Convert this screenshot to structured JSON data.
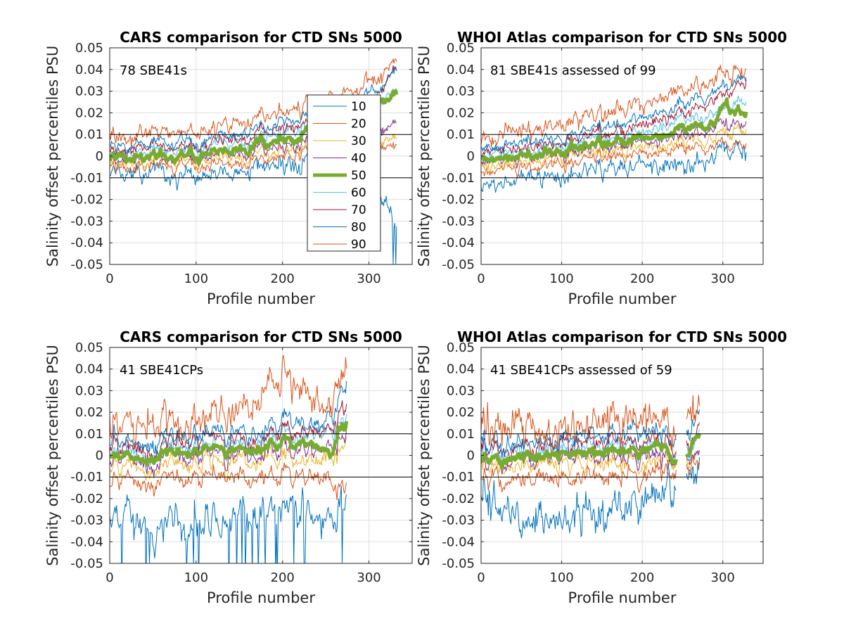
{
  "figure": {
    "colors": {
      "p10": "#0072BD",
      "p20": "#D95319",
      "p30": "#EDB120",
      "p40": "#7E2F8E",
      "p50": "#77AC30",
      "p60": "#4DBEEE",
      "p70": "#A2142F",
      "p80": "#0072BD",
      "p90": "#D95319"
    },
    "reference_lines": [
      0.01,
      -0.01
    ]
  },
  "chart_data": [
    {
      "type": "line",
      "title": "CARS comparison for CTD SNs 5000",
      "xlabel": "Profile number",
      "ylabel": "Salinity offset percentiles PSU",
      "xlim": [
        0,
        350
      ],
      "ylim": [
        -0.05,
        0.05
      ],
      "xticks": [
        "0",
        "100",
        "200",
        "300"
      ],
      "yticks": [
        "0.05",
        "0.04",
        "0.03",
        "0.02",
        "0.01",
        "0",
        "-0.01",
        "-0.02",
        "-0.03",
        "-0.04",
        "-0.05"
      ],
      "grid": true,
      "annotation": "78 SBE41s",
      "legend": {
        "location": "right",
        "entries": [
          "10",
          "20",
          "30",
          "40",
          "50",
          "60",
          "70",
          "80",
          "90"
        ]
      },
      "n_profiles": 333,
      "median_series": {
        "x": [
          0,
          25,
          50,
          75,
          100,
          125,
          150,
          175,
          200,
          225,
          245,
          260,
          280,
          300,
          310,
          320,
          330
        ],
        "y": [
          -0.0005,
          -0.001,
          -0.0008,
          -0.0005,
          0.001,
          0.002,
          0.004,
          0.006,
          0.008,
          0.0095,
          0.015,
          0.012,
          0.016,
          0.019,
          0.029,
          0.026,
          0.028
        ]
      },
      "series": [
        {
          "name": "10",
          "x": [
            0,
            100,
            200,
            260,
            300,
            330
          ],
          "y": [
            -0.009,
            -0.009,
            -0.004,
            -0.003,
            -0.004,
            -0.03
          ]
        },
        {
          "name": "20",
          "x": [
            0,
            100,
            200,
            260,
            300,
            330
          ],
          "y": [
            -0.006,
            -0.004,
            0.0,
            0.003,
            0.005,
            0.004
          ]
        },
        {
          "name": "30",
          "x": [
            0,
            100,
            200,
            260,
            300,
            330
          ],
          "y": [
            -0.004,
            -0.002,
            0.003,
            0.005,
            0.008,
            0.009
          ]
        },
        {
          "name": "40",
          "x": [
            0,
            100,
            200,
            260,
            300,
            330
          ],
          "y": [
            -0.002,
            0.0,
            0.005,
            0.008,
            0.012,
            0.014
          ]
        },
        {
          "name": "50",
          "x": [
            0,
            100,
            200,
            245,
            280,
            310,
            330
          ],
          "y": [
            -0.0005,
            0.001,
            0.008,
            0.015,
            0.016,
            0.029,
            0.028
          ]
        },
        {
          "name": "60",
          "x": [
            0,
            100,
            200,
            260,
            300,
            330
          ],
          "y": [
            0.0005,
            0.004,
            0.011,
            0.014,
            0.022,
            0.03
          ]
        },
        {
          "name": "70",
          "x": [
            0,
            100,
            200,
            260,
            300,
            330
          ],
          "y": [
            0.002,
            0.005,
            0.013,
            0.016,
            0.026,
            0.04
          ]
        },
        {
          "name": "80",
          "x": [
            0,
            100,
            200,
            260,
            300,
            330
          ],
          "y": [
            0.004,
            0.007,
            0.016,
            0.02,
            0.03,
            0.039
          ]
        },
        {
          "name": "90",
          "x": [
            0,
            100,
            200,
            260,
            300,
            330
          ],
          "y": [
            0.008,
            0.012,
            0.021,
            0.027,
            0.034,
            0.044
          ]
        }
      ]
    },
    {
      "type": "line",
      "title": "WHOI Atlas comparison for CTD SNs 5000",
      "xlabel": "Profile number",
      "ylabel": "Salinity offset percentiles PSU",
      "xlim": [
        0,
        350
      ],
      "ylim": [
        -0.05,
        0.05
      ],
      "xticks": [
        "0",
        "100",
        "200",
        "300"
      ],
      "yticks": [
        "0.05",
        "0.04",
        "0.03",
        "0.02",
        "0.01",
        "0",
        "-0.01",
        "-0.02",
        "-0.03",
        "-0.04",
        "-0.05"
      ],
      "grid": true,
      "annotation": "81 SBE41s assessed of 99",
      "n_profiles": 330,
      "median_series": {
        "x": [
          0,
          25,
          50,
          75,
          100,
          125,
          150,
          175,
          200,
          225,
          250,
          275,
          295,
          305,
          315,
          330
        ],
        "y": [
          -0.0005,
          -0.001,
          0.0,
          0.001,
          0.002,
          0.004,
          0.005,
          0.007,
          0.008,
          0.009,
          0.013,
          0.014,
          0.017,
          0.026,
          0.02,
          0.022
        ]
      },
      "series": [
        {
          "name": "10",
          "x": [
            0,
            100,
            200,
            250,
            300,
            330
          ],
          "y": [
            -0.012,
            -0.009,
            -0.004,
            -0.005,
            0.002,
            0.004
          ]
        },
        {
          "name": "20",
          "x": [
            0,
            100,
            200,
            250,
            300,
            330
          ],
          "y": [
            -0.007,
            -0.004,
            0.001,
            0.003,
            0.005,
            0.008
          ]
        },
        {
          "name": "30",
          "x": [
            0,
            100,
            200,
            250,
            300,
            330
          ],
          "y": [
            -0.004,
            -0.001,
            0.004,
            0.006,
            0.01,
            0.013
          ]
        },
        {
          "name": "40",
          "x": [
            0,
            100,
            200,
            250,
            300,
            330
          ],
          "y": [
            -0.002,
            0.001,
            0.006,
            0.009,
            0.014,
            0.017
          ]
        },
        {
          "name": "50",
          "x": [
            0,
            100,
            200,
            250,
            295,
            305,
            330
          ],
          "y": [
            -0.0005,
            0.002,
            0.008,
            0.013,
            0.017,
            0.026,
            0.022
          ]
        },
        {
          "name": "60",
          "x": [
            0,
            100,
            200,
            250,
            300,
            330
          ],
          "y": [
            0.001,
            0.004,
            0.011,
            0.016,
            0.021,
            0.028
          ]
        },
        {
          "name": "70",
          "x": [
            0,
            100,
            200,
            250,
            300,
            330
          ],
          "y": [
            0.002,
            0.006,
            0.014,
            0.02,
            0.027,
            0.037
          ]
        },
        {
          "name": "80",
          "x": [
            0,
            100,
            200,
            250,
            300,
            330
          ],
          "y": [
            0.004,
            0.009,
            0.017,
            0.024,
            0.031,
            0.04
          ]
        },
        {
          "name": "90",
          "x": [
            0,
            100,
            200,
            250,
            300,
            330
          ],
          "y": [
            0.009,
            0.014,
            0.024,
            0.03,
            0.037,
            0.044
          ]
        }
      ]
    },
    {
      "type": "line",
      "title": "CARS comparison for CTD SNs 5000",
      "xlabel": "Profile number",
      "ylabel": "Salinity offset percentiles PSU",
      "xlim": [
        0,
        350
      ],
      "ylim": [
        -0.05,
        0.05
      ],
      "xticks": [
        "0",
        "100",
        "200",
        "300"
      ],
      "yticks": [
        "0.05",
        "0.04",
        "0.03",
        "0.02",
        "0.01",
        "0",
        "-0.01",
        "-0.02",
        "-0.03",
        "-0.04",
        "-0.05"
      ],
      "grid": true,
      "annotation": "41 SBE41CPs",
      "n_profiles": 275,
      "median_series": {
        "x": [
          0,
          25,
          50,
          75,
          100,
          125,
          150,
          175,
          200,
          225,
          245,
          255,
          265,
          275
        ],
        "y": [
          -0.001,
          -0.002,
          -0.001,
          0.0,
          0.001,
          0.002,
          0.002,
          0.003,
          0.006,
          0.005,
          0.003,
          -0.002,
          0.012,
          0.014
        ]
      },
      "series": [
        {
          "name": "10",
          "x": [
            0,
            50,
            100,
            150,
            200,
            250,
            275
          ],
          "y": [
            -0.028,
            -0.033,
            -0.035,
            -0.03,
            -0.025,
            -0.03,
            -0.02
          ]
        },
        {
          "name": "20",
          "x": [
            0,
            50,
            100,
            150,
            200,
            250,
            275
          ],
          "y": [
            -0.012,
            -0.013,
            -0.012,
            -0.01,
            -0.01,
            -0.012,
            -0.015
          ]
        },
        {
          "name": "30",
          "x": [
            0,
            50,
            100,
            150,
            200,
            250,
            275
          ],
          "y": [
            -0.006,
            -0.006,
            -0.005,
            -0.003,
            -0.002,
            -0.003,
            0.005
          ]
        },
        {
          "name": "40",
          "x": [
            0,
            50,
            100,
            150,
            200,
            250,
            275
          ],
          "y": [
            -0.003,
            -0.003,
            -0.002,
            0.0,
            0.002,
            0.001,
            0.01
          ]
        },
        {
          "name": "50",
          "x": [
            0,
            50,
            100,
            150,
            200,
            245,
            275
          ],
          "y": [
            -0.001,
            -0.001,
            0.001,
            0.002,
            0.006,
            0.003,
            0.014
          ]
        },
        {
          "name": "60",
          "x": [
            0,
            50,
            100,
            150,
            200,
            250,
            275
          ],
          "y": [
            0.001,
            0.001,
            0.003,
            0.004,
            0.008,
            0.007,
            0.018
          ]
        },
        {
          "name": "70",
          "x": [
            0,
            50,
            100,
            150,
            200,
            250,
            275
          ],
          "y": [
            0.003,
            0.003,
            0.005,
            0.006,
            0.01,
            0.009,
            0.024
          ]
        },
        {
          "name": "80",
          "x": [
            0,
            50,
            100,
            150,
            200,
            250,
            275
          ],
          "y": [
            0.006,
            0.006,
            0.008,
            0.01,
            0.015,
            0.013,
            0.033
          ]
        },
        {
          "name": "90",
          "x": [
            0,
            50,
            100,
            150,
            200,
            250,
            275
          ],
          "y": [
            0.015,
            0.014,
            0.015,
            0.018,
            0.035,
            0.02,
            0.04
          ]
        }
      ]
    },
    {
      "type": "line",
      "title": "WHOI Atlas comparison for CTD SNs 5000",
      "xlabel": "Profile number",
      "ylabel": "Salinity offset percentiles PSU",
      "xlim": [
        0,
        350
      ],
      "ylim": [
        -0.05,
        0.05
      ],
      "xticks": [
        "0",
        "100",
        "200",
        "300"
      ],
      "yticks": [
        "0.05",
        "0.04",
        "0.03",
        "0.02",
        "0.01",
        "0",
        "-0.01",
        "-0.02",
        "-0.03",
        "-0.04",
        "-0.05"
      ],
      "grid": true,
      "annotation": "41 SBE41CPs assessed of 59",
      "n_profiles": 272,
      "gap": [
        242,
        255
      ],
      "median_series": {
        "x": [
          0,
          25,
          50,
          75,
          100,
          125,
          150,
          175,
          200,
          225,
          240,
          255,
          265,
          272
        ],
        "y": [
          -0.001,
          -0.002,
          -0.001,
          -0.001,
          0.0,
          0.001,
          0.002,
          0.002,
          0.003,
          0.004,
          -0.002,
          -0.002,
          0.008,
          0.011
        ]
      },
      "series": [
        {
          "name": "10",
          "x": [
            0,
            50,
            100,
            150,
            200,
            240,
            260,
            272
          ],
          "y": [
            -0.02,
            -0.03,
            -0.03,
            -0.025,
            -0.02,
            -0.015,
            -0.01,
            -0.004
          ]
        },
        {
          "name": "20",
          "x": [
            0,
            50,
            100,
            150,
            200,
            240,
            260,
            272
          ],
          "y": [
            -0.01,
            -0.012,
            -0.012,
            -0.01,
            -0.008,
            -0.008,
            -0.006,
            0.0
          ]
        },
        {
          "name": "30",
          "x": [
            0,
            50,
            100,
            150,
            200,
            240,
            260,
            272
          ],
          "y": [
            -0.005,
            -0.006,
            -0.005,
            -0.004,
            -0.002,
            -0.004,
            -0.004,
            0.004
          ]
        },
        {
          "name": "40",
          "x": [
            0,
            50,
            100,
            150,
            200,
            240,
            260,
            272
          ],
          "y": [
            -0.003,
            -0.003,
            -0.002,
            -0.001,
            0.001,
            -0.002,
            -0.003,
            0.008
          ]
        },
        {
          "name": "50",
          "x": [
            0,
            50,
            100,
            150,
            200,
            240,
            260,
            272
          ],
          "y": [
            -0.001,
            -0.001,
            0.0,
            0.002,
            0.003,
            -0.002,
            -0.002,
            0.011
          ]
        },
        {
          "name": "60",
          "x": [
            0,
            50,
            100,
            150,
            200,
            240,
            260,
            272
          ],
          "y": [
            0.001,
            0.001,
            0.002,
            0.004,
            0.006,
            0.001,
            0.001,
            0.015
          ]
        },
        {
          "name": "70",
          "x": [
            0,
            50,
            100,
            150,
            200,
            240,
            260,
            272
          ],
          "y": [
            0.003,
            0.003,
            0.004,
            0.006,
            0.008,
            0.004,
            0.003,
            0.02
          ]
        },
        {
          "name": "80",
          "x": [
            0,
            50,
            100,
            150,
            200,
            240,
            260,
            272
          ],
          "y": [
            0.006,
            0.005,
            0.007,
            0.009,
            0.012,
            0.008,
            0.01,
            0.026
          ]
        },
        {
          "name": "90",
          "x": [
            0,
            50,
            100,
            150,
            200,
            240,
            260,
            272
          ],
          "y": [
            0.015,
            0.01,
            0.011,
            0.013,
            0.02,
            0.012,
            0.022,
            0.029
          ]
        }
      ]
    }
  ]
}
